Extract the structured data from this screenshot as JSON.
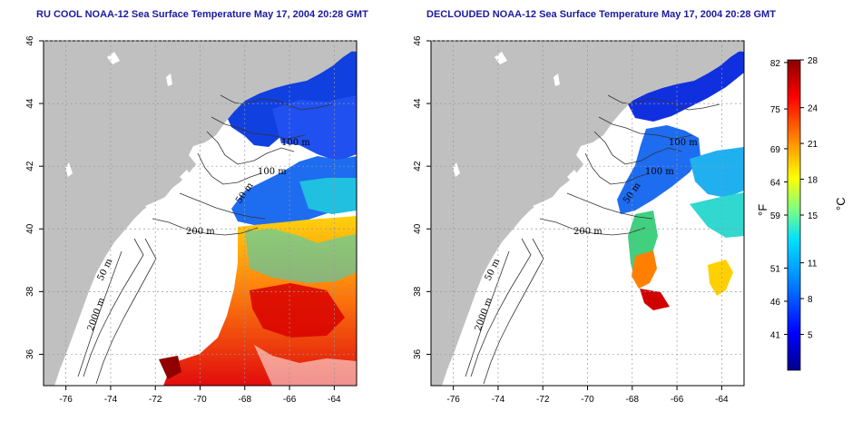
{
  "titles": {
    "left": "RU COOL NOAA-12 Sea Surface Temperature May 17, 2004 20:28 GMT",
    "right": "DECLOUDED NOAA-12 Sea Surface Temperature May 17, 2004 20:28 GMT"
  },
  "axes": {
    "x_ticks": [
      "-76",
      "-74",
      "-72",
      "-70",
      "-68",
      "-66",
      "-64"
    ],
    "y_ticks": [
      "46",
      "44",
      "42",
      "40",
      "38",
      "36"
    ],
    "xlim": [
      -77,
      -63
    ],
    "ylim": [
      35,
      46
    ],
    "grid": "dotted"
  },
  "contours": {
    "labels": [
      "100 m",
      "100 m",
      "50 m",
      "200 m",
      "50 m",
      "2000 m"
    ]
  },
  "colorbar": {
    "celsius_ticks": [
      "28",
      "24",
      "21",
      "18",
      "15",
      "11",
      "8",
      "5"
    ],
    "fahrenheit_ticks": [
      "82",
      "75",
      "69",
      "64",
      "59",
      "51",
      "46",
      "41"
    ],
    "celsius_unit": "°C",
    "fahrenheit_unit": "°F",
    "range_c": [
      2,
      28
    ],
    "colors": [
      "#00008b",
      "#0000ff",
      "#0080ff",
      "#00ffff",
      "#80ff80",
      "#ffff00",
      "#ff8000",
      "#ff0000",
      "#8b0000"
    ]
  },
  "colors": {
    "land": "#c0c0c0",
    "ocean": "#ffffff",
    "title": "#1a1aa0"
  }
}
